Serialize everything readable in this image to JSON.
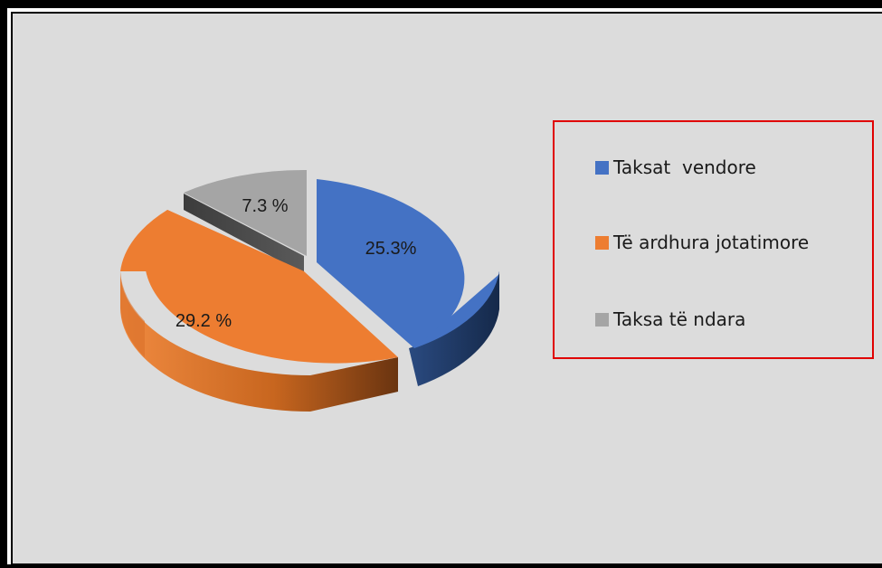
{
  "chart_data": {
    "type": "pie",
    "style": "3d-exploded",
    "title": "",
    "slices": [
      {
        "name": "Taksat  vendore",
        "value": 25.3,
        "label": "25.3%",
        "color": "#4472c4",
        "side_color": "#1f3a68"
      },
      {
        "name": "Të ardhura jotatimore",
        "value": 29.2,
        "label": "29.2 %",
        "color": "#ed7d31",
        "side_color": "#a9561c"
      },
      {
        "name": "Taksa të ndara",
        "value": 7.3,
        "label": "7.3 %",
        "color": "#a5a5a5",
        "side_color": "#4a4a4a"
      }
    ],
    "legend_position": "right"
  },
  "colors": {
    "background": "#dcdcdc",
    "legend_border": "#e00000",
    "frame": "#000000"
  }
}
